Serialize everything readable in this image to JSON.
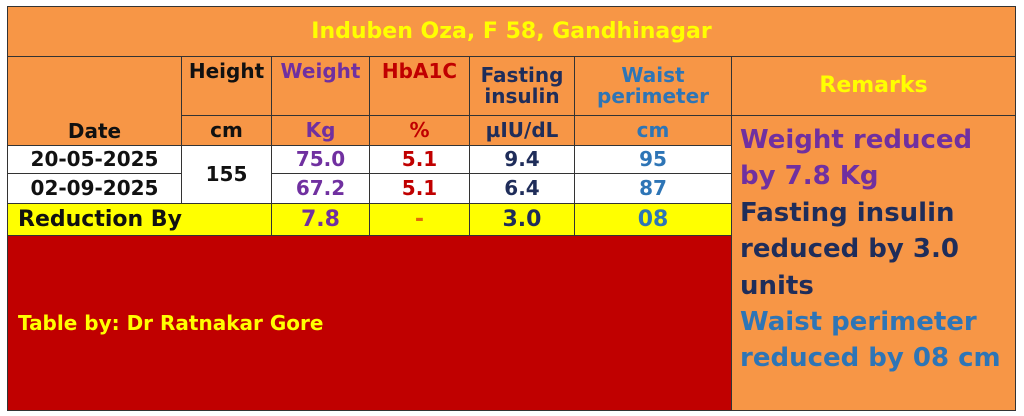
{
  "title": "Induben Oza, F 58, Gandhinagar",
  "headers": {
    "date": "Date",
    "height": "Height",
    "weight": "Weight",
    "hba1c": "HbA1C",
    "fasting": "Fasting insulin",
    "waist": "Waist perimeter",
    "remarks": "Remarks"
  },
  "units": {
    "height": "cm",
    "weight": "Kg",
    "hba1c": "%",
    "fasting": "µIU/dL",
    "waist": "cm"
  },
  "rows": [
    {
      "date": "20-05-2025",
      "weight": "75.0",
      "hba1c": "5.1",
      "fasting": "9.4",
      "waist": "95"
    },
    {
      "date": "02-09-2025",
      "weight": "67.2",
      "hba1c": "5.1",
      "fasting": "6.4",
      "waist": "87"
    }
  ],
  "height_value": "155",
  "reduction": {
    "label": "Reduction By",
    "weight": "7.8",
    "hba1c": "-",
    "fasting": "3.0",
    "waist": "08"
  },
  "credit": "Table by: Dr Ratnakar Gore",
  "remarks": [
    "Weight reduced by 7.8 Kg",
    "Fasting insulin reduced by 3.0 units",
    "Waist perimeter reduced by 08 cm"
  ],
  "colors": {
    "header": "#f79646",
    "highlight": "#ffff00",
    "footer": "#c00000",
    "weight": "#7030a0",
    "hba1c": "#c00000",
    "fasting": "#1f2d5a",
    "waist": "#2e75b6"
  }
}
